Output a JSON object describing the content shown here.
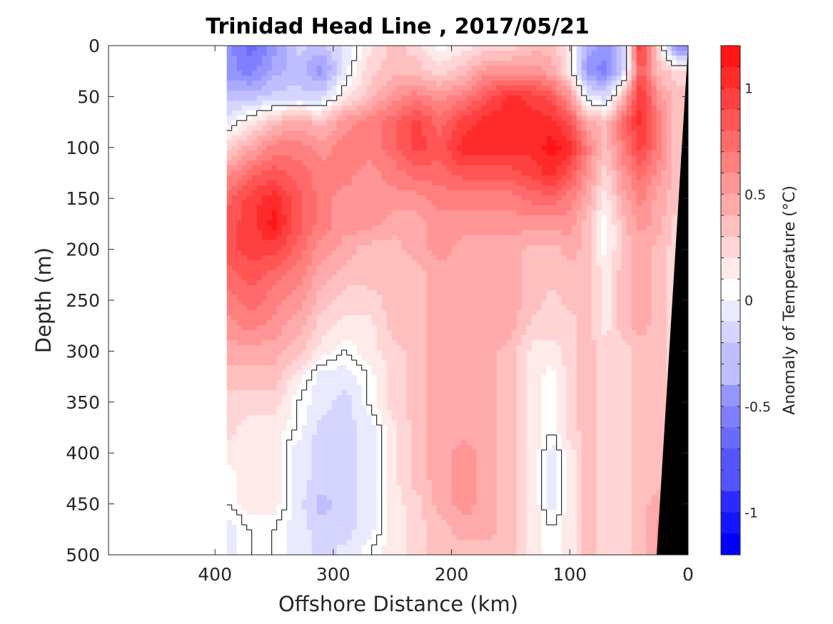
{
  "chart_data": {
    "type": "heatmap",
    "subtype": "filled-contour section",
    "title": "Trinidad Head Line , 2017/05/21",
    "xlabel": "Offshore Distance (km)",
    "ylabel": "Depth (m)",
    "colorbar_label": "Anomaly of Temperature (°C)",
    "xlim": [
      490,
      0
    ],
    "ylim": [
      0,
      500
    ],
    "x_reversed": true,
    "y_reversed": true,
    "x_ticks": [
      "400",
      "300",
      "200",
      "100",
      "0"
    ],
    "y_ticks": [
      "0",
      "50",
      "100",
      "150",
      "200",
      "250",
      "300",
      "350",
      "400",
      "450",
      "500"
    ],
    "colorbar_range": [
      -1.2,
      1.2
    ],
    "colorbar_step": 0.1,
    "colorbar_ticks": [
      "1",
      "0.5",
      "0",
      "-0.5",
      "-1"
    ],
    "colormap": {
      "negative": "#0000ff",
      "zero": "#ffffff",
      "positive": "#ff0000"
    },
    "data_coverage_x_km": [
      390,
      0
    ],
    "bathymetry_color": "#000000",
    "zero_contour_color": "#000000",
    "x_distance_km": [
      390,
      370,
      350,
      330,
      310,
      290,
      270,
      250,
      230,
      210,
      190,
      170,
      150,
      130,
      115,
      100,
      85,
      70,
      55,
      40,
      25,
      10
    ],
    "depth_m": [
      0,
      25,
      50,
      75,
      100,
      125,
      150,
      175,
      200,
      225,
      250,
      275,
      300,
      325,
      350,
      375,
      400,
      425,
      450,
      475,
      500
    ],
    "values": [
      [
        -0.5,
        -0.7,
        -0.5,
        -0.2,
        -0.3,
        -0.1,
        0.1,
        0.3,
        0.2,
        0.0,
        0.1,
        0.2,
        0.2,
        0.3,
        0.3,
        0.1,
        -0.4,
        -0.5,
        -0.3,
        1.0,
        0.2,
        -0.6
      ],
      [
        -0.5,
        -0.6,
        -0.4,
        -0.3,
        -0.5,
        -0.1,
        0.2,
        0.3,
        0.3,
        0.2,
        0.3,
        0.5,
        0.5,
        0.5,
        0.4,
        0.1,
        -0.5,
        -0.6,
        -0.2,
        0.8,
        0.3,
        0.2
      ],
      [
        -0.3,
        -0.3,
        -0.2,
        -0.2,
        -0.2,
        0.1,
        0.3,
        0.5,
        0.6,
        0.5,
        0.6,
        0.8,
        1.0,
        0.9,
        0.8,
        0.5,
        -0.1,
        -0.2,
        0.3,
        1.0,
        0.5,
        0.3
      ],
      [
        -0.1,
        0.1,
        0.3,
        0.4,
        0.3,
        0.5,
        0.6,
        0.7,
        0.9,
        0.7,
        0.9,
        1.0,
        1.0,
        1.0,
        1.0,
        0.8,
        0.4,
        0.3,
        0.7,
        1.0,
        0.6,
        0.3
      ],
      [
        0.2,
        0.4,
        0.6,
        0.6,
        0.5,
        0.6,
        0.6,
        0.7,
        0.9,
        0.8,
        1.0,
        1.0,
        1.0,
        1.0,
        1.1,
        1.0,
        0.6,
        0.3,
        0.6,
        0.9,
        0.6,
        0.3
      ],
      [
        0.5,
        0.7,
        0.8,
        0.7,
        0.6,
        0.6,
        0.5,
        0.6,
        0.7,
        0.7,
        0.8,
        0.8,
        0.8,
        0.9,
        1.0,
        0.8,
        0.5,
        0.2,
        0.5,
        0.7,
        0.5,
        0.3
      ],
      [
        0.7,
        0.9,
        1.0,
        0.8,
        0.6,
        0.5,
        0.5,
        0.5,
        0.5,
        0.6,
        0.6,
        0.6,
        0.6,
        0.7,
        0.7,
        0.6,
        0.4,
        0.1,
        0.4,
        0.6,
        0.4,
        0.3
      ],
      [
        0.8,
        0.9,
        1.1,
        0.8,
        0.6,
        0.5,
        0.5,
        0.4,
        0.4,
        0.5,
        0.5,
        0.5,
        0.5,
        0.5,
        0.5,
        0.5,
        0.3,
        0.0,
        0.3,
        0.5,
        0.4,
        0.2
      ],
      [
        0.8,
        0.9,
        0.9,
        0.7,
        0.5,
        0.4,
        0.3,
        0.3,
        0.4,
        0.5,
        0.4,
        0.4,
        0.4,
        0.3,
        0.3,
        0.4,
        0.3,
        0.0,
        0.3,
        0.4,
        0.3,
        0.2
      ],
      [
        0.7,
        0.8,
        0.7,
        0.6,
        0.4,
        0.3,
        0.3,
        0.3,
        0.3,
        0.4,
        0.4,
        0.4,
        0.4,
        0.3,
        0.3,
        0.3,
        0.3,
        0.1,
        0.3,
        0.4,
        0.3,
        0.2
      ],
      [
        0.6,
        0.7,
        0.6,
        0.5,
        0.3,
        0.2,
        0.2,
        0.3,
        0.3,
        0.4,
        0.4,
        0.4,
        0.4,
        0.3,
        0.2,
        0.3,
        0.3,
        0.1,
        0.3,
        0.4,
        0.3,
        0.2
      ],
      [
        0.5,
        0.6,
        0.5,
        0.4,
        0.2,
        0.1,
        0.1,
        0.3,
        0.3,
        0.4,
        0.4,
        0.4,
        0.4,
        0.2,
        0.2,
        0.2,
        0.3,
        0.1,
        0.3,
        0.4,
        0.3,
        0.2
      ],
      [
        0.4,
        0.4,
        0.4,
        0.3,
        0.1,
        0.0,
        0.1,
        0.2,
        0.3,
        0.4,
        0.4,
        0.4,
        0.3,
        0.1,
        0.1,
        0.2,
        0.3,
        0.2,
        0.2,
        0.3,
        0.3,
        0.2
      ],
      [
        0.3,
        0.3,
        0.3,
        0.1,
        -0.1,
        -0.1,
        0.0,
        0.2,
        0.3,
        0.4,
        0.4,
        0.4,
        0.3,
        0.1,
        0.0,
        0.2,
        0.3,
        0.2,
        0.2,
        0.3,
        0.3,
        0.2
      ],
      [
        0.2,
        0.2,
        0.2,
        0.0,
        -0.1,
        -0.2,
        0.0,
        0.2,
        0.3,
        0.4,
        0.4,
        0.4,
        0.3,
        0.1,
        0.0,
        0.2,
        0.3,
        0.2,
        0.2,
        0.3,
        0.3,
        0.2
      ],
      [
        0.2,
        0.1,
        0.1,
        0.0,
        -0.2,
        -0.2,
        -0.1,
        0.1,
        0.3,
        0.4,
        0.4,
        0.4,
        0.3,
        0.1,
        0.0,
        0.2,
        0.3,
        0.2,
        0.2,
        0.3,
        0.3,
        0.2
      ],
      [
        0.1,
        0.1,
        0.1,
        -0.1,
        -0.2,
        -0.2,
        -0.1,
        0.1,
        0.3,
        0.4,
        0.5,
        0.4,
        0.3,
        0.1,
        -0.1,
        0.1,
        0.3,
        0.2,
        0.2,
        0.3,
        0.3,
        0.2
      ],
      [
        0.0,
        0.1,
        0.1,
        -0.1,
        -0.2,
        -0.2,
        -0.1,
        0.1,
        0.3,
        0.4,
        0.5,
        0.4,
        0.3,
        0.1,
        -0.1,
        0.1,
        0.3,
        0.2,
        0.2,
        0.3,
        0.3,
        0.2
      ],
      [
        0.0,
        0.1,
        0.1,
        -0.1,
        -0.3,
        -0.2,
        -0.1,
        0.1,
        0.2,
        0.4,
        0.5,
        0.4,
        0.3,
        0.1,
        -0.1,
        0.1,
        0.3,
        0.2,
        0.2,
        0.3,
        0.4,
        0.2
      ],
      [
        -0.1,
        0.0,
        0.0,
        -0.1,
        -0.2,
        -0.2,
        -0.1,
        0.1,
        0.2,
        0.3,
        0.4,
        0.4,
        0.3,
        0.1,
        0.0,
        0.1,
        0.3,
        0.2,
        0.2,
        0.3,
        0.5,
        0.2
      ],
      [
        -0.1,
        0.0,
        0.0,
        -0.1,
        -0.2,
        -0.1,
        0.0,
        0.1,
        0.2,
        0.3,
        0.3,
        0.3,
        0.3,
        0.1,
        0.0,
        0.1,
        0.3,
        0.2,
        0.2,
        0.3,
        0.5,
        0.2
      ]
    ]
  }
}
